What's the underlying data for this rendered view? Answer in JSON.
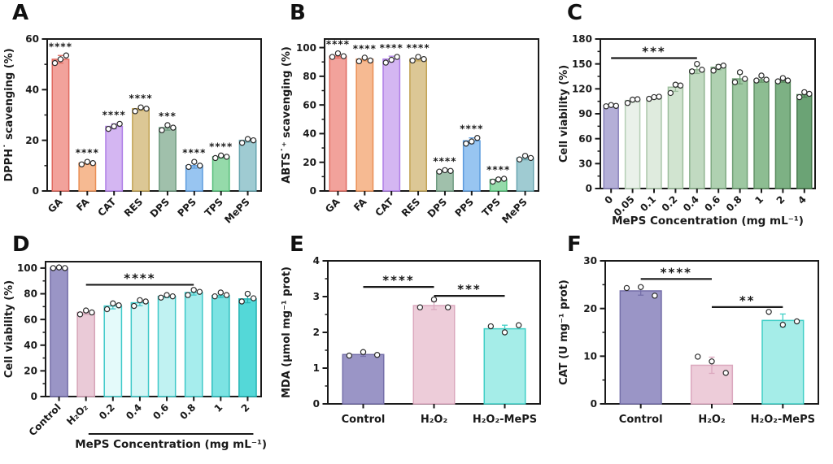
{
  "figure_title": "Antioxidant activity and cytoprotection bar charts",
  "chart_data": [
    {
      "panel_label": "A",
      "type": "bar",
      "ylabel": "DPPH˙ scavenging (%)",
      "xlabel": "",
      "ylim": [
        0,
        60
      ],
      "yticks": [
        0,
        20,
        40,
        60
      ],
      "yminor_step": 10,
      "grid": false,
      "rotate_xticks": true,
      "categories": [
        "GA",
        "FA",
        "CAT",
        "RES",
        "DPS",
        "PPS",
        "TPS",
        "MePS"
      ],
      "values": [
        52,
        11,
        25.5,
        32.5,
        25,
        10,
        13.5,
        20
      ],
      "points": [
        [
          50.5,
          52,
          53.5
        ],
        [
          10.5,
          11.5,
          11
        ],
        [
          24.5,
          25.5,
          26.5
        ],
        [
          31.5,
          33,
          32.5
        ],
        [
          24,
          26,
          25
        ],
        [
          9.5,
          11.5,
          10
        ],
        [
          13,
          14,
          13.5
        ],
        [
          19,
          20.5,
          20
        ]
      ],
      "bar_stars": [
        "****",
        "****",
        "****",
        "****",
        "***",
        "****",
        "****",
        ""
      ],
      "sig_lines": [],
      "colors": {
        "fills": [
          "#F2A29B",
          "#F6BA92",
          "#D4B6F2",
          "#DCC795",
          "#A0C0AB",
          "#98C5F1",
          "#95DAAA",
          "#9FCBD2"
        ],
        "strokes": [
          "#E06A60",
          "#EA8F55",
          "#AE7DE6",
          "#C2A355",
          "#6F9B81",
          "#5C9BDD",
          "#54BD78",
          "#68A6B0"
        ]
      },
      "layout": {
        "margins": {
          "l": 58,
          "r": 20,
          "t": 48,
          "b": 50
        },
        "bar_frac": 0.62
      }
    },
    {
      "panel_label": "B",
      "type": "bar",
      "ylabel": "ABTS˙⁺ scavenging (%)",
      "xlabel": "",
      "ylim": [
        0,
        106
      ],
      "yticks": [
        0,
        20,
        40,
        60,
        80,
        100
      ],
      "yminor_step": 10,
      "grid": false,
      "rotate_xticks": true,
      "categories": [
        "GA",
        "FA",
        "CAT",
        "RES",
        "DPS",
        "PPS",
        "TPS",
        "MePS"
      ],
      "values": [
        94,
        92,
        92,
        92,
        14,
        35,
        8,
        23
      ],
      "points": [
        [
          93.5,
          96,
          94
        ],
        [
          90.5,
          93,
          91
        ],
        [
          89.5,
          91.5,
          93.5
        ],
        [
          91,
          93.5,
          92
        ],
        [
          13.5,
          14.5,
          14
        ],
        [
          33,
          34.5,
          37
        ],
        [
          6.5,
          8,
          8.5
        ],
        [
          22,
          24.5,
          23
        ]
      ],
      "bar_stars": [
        "****",
        "****",
        "****",
        "****",
        "****",
        "****",
        "****",
        ""
      ],
      "sig_lines": [],
      "colors": {
        "fills": [
          "#F2A29B",
          "#F6BA92",
          "#D4B6F2",
          "#DCC795",
          "#A0C0AB",
          "#98C5F1",
          "#95DAAA",
          "#9FCBD2"
        ],
        "strokes": [
          "#E06A60",
          "#EA8F55",
          "#AE7DE6",
          "#C2A355",
          "#6F9B81",
          "#5C9BDD",
          "#54BD78",
          "#68A6B0"
        ]
      },
      "layout": {
        "margins": {
          "l": 58,
          "r": 20,
          "t": 48,
          "b": 50
        },
        "bar_frac": 0.62
      }
    },
    {
      "panel_label": "C",
      "type": "bar",
      "ylabel": "Cell viability (%)",
      "xlabel": "MePS Concentration (mg mL⁻¹)",
      "ylim": [
        0,
        180
      ],
      "yticks": [
        0,
        30,
        60,
        90,
        120,
        150,
        180
      ],
      "yminor_step": 15,
      "grid": false,
      "rotate_xticks": true,
      "categories": [
        "0",
        "0.05",
        "0.1",
        "0.2",
        "0.4",
        "0.6",
        "0.8",
        "1",
        "2",
        "4"
      ],
      "values": [
        100,
        106,
        109,
        122,
        143,
        146,
        132,
        131,
        130,
        113
      ],
      "points": [
        [
          99,
          100.5,
          99.5
        ],
        [
          103,
          107,
          107.5
        ],
        [
          108,
          110,
          110.5
        ],
        [
          115,
          125,
          124
        ],
        [
          141,
          150,
          143
        ],
        [
          142,
          146.5,
          148
        ],
        [
          128,
          140,
          132
        ],
        [
          130,
          136,
          131
        ],
        [
          129,
          133,
          130
        ],
        [
          110,
          116,
          114
        ]
      ],
      "bar_stars": [
        "",
        "",
        "",
        "",
        "",
        "",
        "",
        "",
        "",
        ""
      ],
      "sig_lines": [
        {
          "from": 0,
          "to": 4,
          "y": 157,
          "label": "***"
        }
      ],
      "colors": {
        "fills": [
          "#B4AFD7",
          "#EAF1EA",
          "#DFEBDE",
          "#D1E4D0",
          "#C1DAC1",
          "#AFD1B1",
          "#9DC7A1",
          "#8DBD92",
          "#7DB184",
          "#6BA375"
        ],
        "strokes": [
          "#8A83BC",
          "#B5CFB5",
          "#ABC7AA",
          "#9DBE9D",
          "#8FB490",
          "#80AA83",
          "#719F76",
          "#649468",
          "#578A5C",
          "#4A7C50"
        ]
      },
      "layout": {
        "margins": {
          "l": 56,
          "r": 22,
          "t": 48,
          "b": 53
        },
        "bar_frac": 0.68,
        "xlabel_dy": 44
      }
    },
    {
      "panel_label": "D",
      "type": "bar",
      "ylabel": "Cell viability (%)",
      "xlabel": "",
      "ylim": [
        0,
        105
      ],
      "yticks": [
        0,
        20,
        40,
        60,
        80,
        100
      ],
      "yminor_step": 10,
      "grid": false,
      "rotate_xticks": true,
      "categories": [
        "Control",
        "H₂O₂",
        "0.2",
        "0.4",
        "0.6",
        "0.8",
        "1",
        "2"
      ],
      "values": [
        100,
        65.5,
        70.5,
        73,
        78,
        81,
        78.5,
        76
      ],
      "points": [
        [
          100,
          100.5,
          100
        ],
        [
          64,
          67,
          65.5
        ],
        [
          68,
          72.5,
          71
        ],
        [
          70.5,
          75,
          74
        ],
        [
          77,
          79,
          78
        ],
        [
          79,
          83,
          81.5
        ],
        [
          78,
          81,
          79
        ],
        [
          74,
          80,
          76.5
        ]
      ],
      "bar_stars": [
        "",
        "",
        "",
        "",
        "",
        "",
        "",
        ""
      ],
      "sig_lines": [
        {
          "from": 1,
          "to": 5,
          "y": 87,
          "label": "****"
        }
      ],
      "group": {
        "from": 2,
        "to": 7,
        "label": "MePS Concentration (mg mL⁻¹)"
      },
      "colors": {
        "fills": [
          "#9A95C6",
          "#EACAD7",
          "#E4FAFA",
          "#D4F6F6",
          "#C0F2F2",
          "#A6EDED",
          "#7CE3E3",
          "#54D8D8"
        ],
        "strokes": [
          "#756FA9",
          "#D5A3B7",
          "#3FC9C9",
          "#3FC9C9",
          "#3FC9C9",
          "#3FC9C9",
          "#2FBFBF",
          "#26B5B5"
        ]
      },
      "layout": {
        "margins": {
          "l": 56,
          "r": 20,
          "t": 37,
          "b": 83
        },
        "bar_frac": 0.64,
        "group_line_dy": 46
      }
    },
    {
      "panel_label": "E",
      "type": "bar",
      "ylabel": "MDA (μmol mg⁻¹ prot)",
      "xlabel": "",
      "ylim": [
        0,
        4
      ],
      "yticks": [
        0,
        1,
        2,
        3,
        4
      ],
      "yminor_step": 0.5,
      "grid": false,
      "rotate_xticks": false,
      "categories": [
        "Control",
        "H₂O₂",
        "H₂O₂-MePS"
      ],
      "values": [
        1.38,
        2.75,
        2.1
      ],
      "points": [
        [
          1.35,
          1.45,
          1.37
        ],
        [
          2.7,
          2.92,
          2.7
        ],
        [
          2.17,
          2.0,
          2.2
        ]
      ],
      "bar_stars": [
        "",
        "",
        ""
      ],
      "sig_lines": [
        {
          "from": 0,
          "to": 1,
          "y": 3.27,
          "label": "****"
        },
        {
          "from": 1,
          "to": 2,
          "y": 3.02,
          "label": "***"
        }
      ],
      "colors": {
        "fills": [
          "#9A95C6",
          "#EDCCD9",
          "#A5EDE8"
        ],
        "strokes": [
          "#756FA9",
          "#DBA8BE",
          "#3FCFC6"
        ]
      },
      "layout": {
        "margins": {
          "l": 62,
          "r": 18,
          "t": 36,
          "b": 74
        },
        "bar_frac": 0.58
      }
    },
    {
      "panel_label": "F",
      "type": "bar",
      "ylabel": "CAT (U mg⁻¹ prot)",
      "xlabel": "",
      "ylim": [
        0,
        30
      ],
      "yticks": [
        0,
        10,
        20,
        30
      ],
      "yminor_step": 5,
      "grid": false,
      "rotate_xticks": false,
      "categories": [
        "Control",
        "H₂O₂",
        "H₂O₂-MePS"
      ],
      "values": [
        23.7,
        8.1,
        17.5
      ],
      "points": [
        [
          24.3,
          24.5,
          22.7
        ],
        [
          9.9,
          8.9,
          6.5
        ],
        [
          19.3,
          16.6,
          17.3
        ]
      ],
      "bar_stars": [
        "",
        "",
        ""
      ],
      "sig_lines": [
        {
          "from": 0,
          "to": 1,
          "y": 26.2,
          "label": "****"
        },
        {
          "from": 1,
          "to": 2,
          "y": 20.3,
          "label": "**"
        }
      ],
      "colors": {
        "fills": [
          "#9A95C6",
          "#EDCCD9",
          "#A5EDE8"
        ],
        "strokes": [
          "#756FA9",
          "#DBA8BE",
          "#3FCFC6"
        ]
      },
      "layout": {
        "margins": {
          "l": 62,
          "r": 18,
          "t": 36,
          "b": 74
        },
        "bar_frac": 0.58
      }
    }
  ]
}
